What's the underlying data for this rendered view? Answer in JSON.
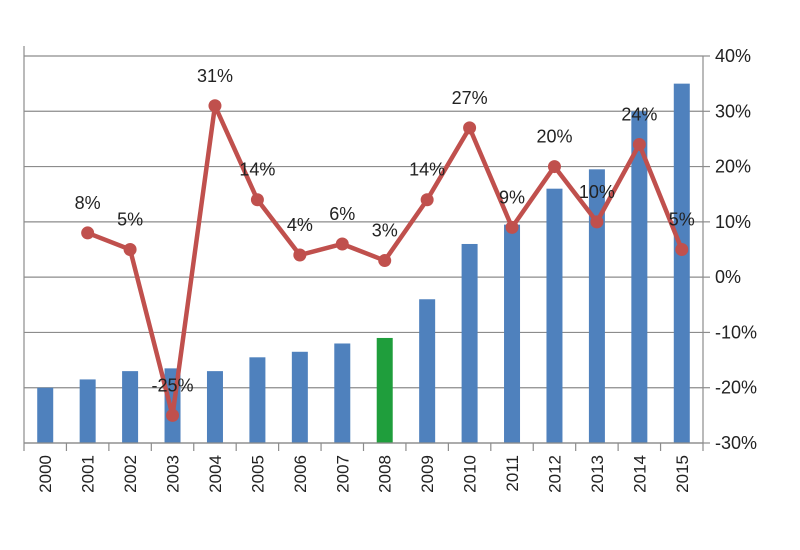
{
  "chart_data": {
    "type": "bar",
    "categories": [
      "2000",
      "2001",
      "2002",
      "2003",
      "2004",
      "2005",
      "2006",
      "2007",
      "2008",
      "2009",
      "2010",
      "2011",
      "2012",
      "2013",
      "2014",
      "2015"
    ],
    "series": [
      {
        "type": "bar",
        "axis": "primary",
        "color": "#4f81bd",
        "highlight_color": "#1f9e3c",
        "highlight_category": "2008",
        "values": [
          1.0,
          1.15,
          1.3,
          1.35,
          1.3,
          1.55,
          1.65,
          1.8,
          1.9,
          2.6,
          3.6,
          3.95,
          4.6,
          4.95,
          6.0,
          6.5
        ]
      },
      {
        "type": "line",
        "axis": "secondary",
        "color": "#c0504d",
        "values": [
          null,
          8,
          5,
          -25,
          31,
          14,
          4,
          6,
          3,
          14,
          27,
          9,
          20,
          10,
          24,
          5
        ],
        "labels": [
          "",
          "8%",
          "5%",
          "-25%",
          "31%",
          "14%",
          "4%",
          "6%",
          "3%",
          "14%",
          "27%",
          "9%",
          "20%",
          "10%",
          "24%",
          "5%"
        ]
      }
    ],
    "primary_axis": {
      "ylim": [
        0,
        7
      ],
      "tick_labels_visible": false
    },
    "secondary_axis": {
      "ylim": [
        -30,
        40
      ],
      "ticks": [
        40,
        30,
        20,
        10,
        0,
        -10,
        -20,
        -30
      ],
      "tick_labels": [
        "40%",
        "30%",
        "20%",
        "10%",
        "0%",
        "-10%",
        "-20%",
        "-30%"
      ],
      "position": "right"
    },
    "grid": true,
    "legend": "none"
  }
}
